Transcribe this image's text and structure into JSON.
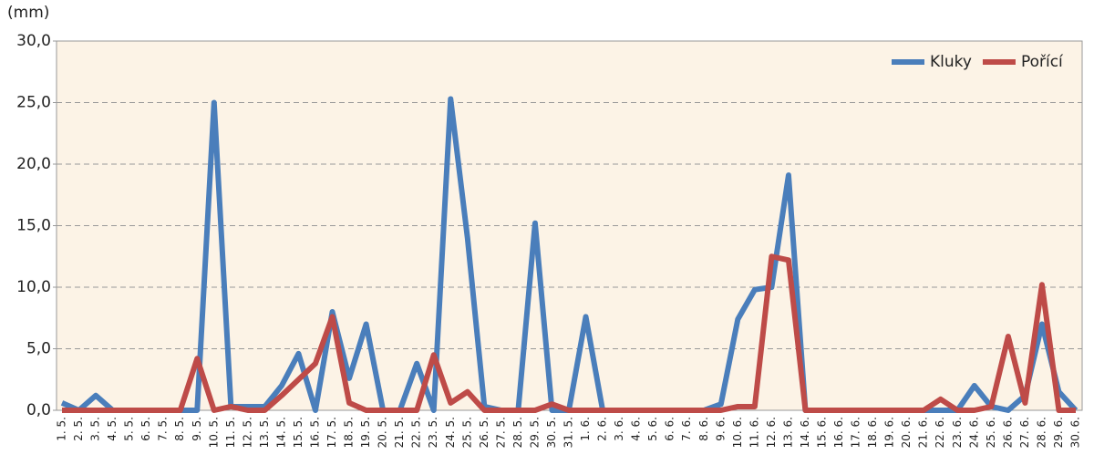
{
  "chart_data": {
    "type": "line",
    "y_label": "(mm)",
    "categories": [
      "1. 5.",
      "2. 5.",
      "3. 5.",
      "4. 5.",
      "5. 5.",
      "6. 5.",
      "7. 5.",
      "8. 5.",
      "9. 5.",
      "10. 5.",
      "11. 5.",
      "12. 5.",
      "13. 5.",
      "14. 5.",
      "15. 5.",
      "16. 5.",
      "17. 5.",
      "18. 5.",
      "19. 5.",
      "20. 5.",
      "21. 5.",
      "22. 5.",
      "23. 5.",
      "24. 5.",
      "25. 5.",
      "26. 5.",
      "27. 5.",
      "28. 5.",
      "29. 5.",
      "30. 5.",
      "31. 5.",
      "1. 6.",
      "2. 6.",
      "3. 6.",
      "4. 6.",
      "5. 6.",
      "6. 6.",
      "7. 6.",
      "8. 6.",
      "9. 6.",
      "10. 6.",
      "11. 6.",
      "12. 6.",
      "13. 6.",
      "14. 6.",
      "15. 6.",
      "16. 6.",
      "17. 6.",
      "18. 6.",
      "19. 6.",
      "20. 6.",
      "21. 6.",
      "22. 6.",
      "23. 6.",
      "24. 6.",
      "25. 6.",
      "26. 6.",
      "27. 6.",
      "28. 6.",
      "29. 6.",
      "30. 6."
    ],
    "series": [
      {
        "name": "Kluky",
        "color": "#4a7ebb",
        "values": [
          0.6,
          0,
          1.2,
          0,
          0,
          0,
          0,
          0,
          0,
          25.0,
          0.3,
          0.3,
          0.3,
          2.0,
          4.6,
          0,
          8.0,
          2.6,
          7.0,
          0,
          0,
          3.8,
          0,
          25.3,
          14.0,
          0.3,
          0,
          0,
          15.2,
          0,
          0,
          7.6,
          0,
          0,
          0,
          0,
          0,
          0,
          0,
          0.5,
          7.4,
          9.8,
          10.0,
          19.1,
          0,
          0,
          0,
          0,
          0,
          0,
          0,
          0,
          0,
          0,
          2.0,
          0.3,
          0,
          1.2,
          7.0,
          1.5,
          0
        ]
      },
      {
        "name": "Pořící",
        "color": "#be4b48",
        "values": [
          0,
          0,
          0,
          0,
          0,
          0,
          0,
          0,
          4.2,
          0,
          0.3,
          0,
          0,
          1.2,
          2.5,
          3.8,
          7.6,
          0.6,
          0,
          0,
          0,
          0,
          4.5,
          0.6,
          1.5,
          0,
          0,
          0,
          0,
          0.5,
          0,
          0,
          0,
          0,
          0,
          0,
          0,
          0,
          0,
          0,
          0.3,
          0.3,
          12.5,
          12.2,
          0,
          0,
          0,
          0,
          0,
          0,
          0,
          0,
          0.9,
          0,
          0,
          0.3,
          6.0,
          0.6,
          10.2,
          0,
          0
        ]
      }
    ],
    "ylim": [
      0,
      30
    ],
    "yticks": [
      {
        "value": 0,
        "label": "0,0"
      },
      {
        "value": 5,
        "label": "5,0"
      },
      {
        "value": 10,
        "label": "10,0"
      },
      {
        "value": 15,
        "label": "15,0"
      },
      {
        "value": 20,
        "label": "20,0"
      },
      {
        "value": 25,
        "label": "25,0"
      },
      {
        "value": 30,
        "label": "30,0"
      }
    ],
    "grid": true,
    "legend": "top-right"
  }
}
